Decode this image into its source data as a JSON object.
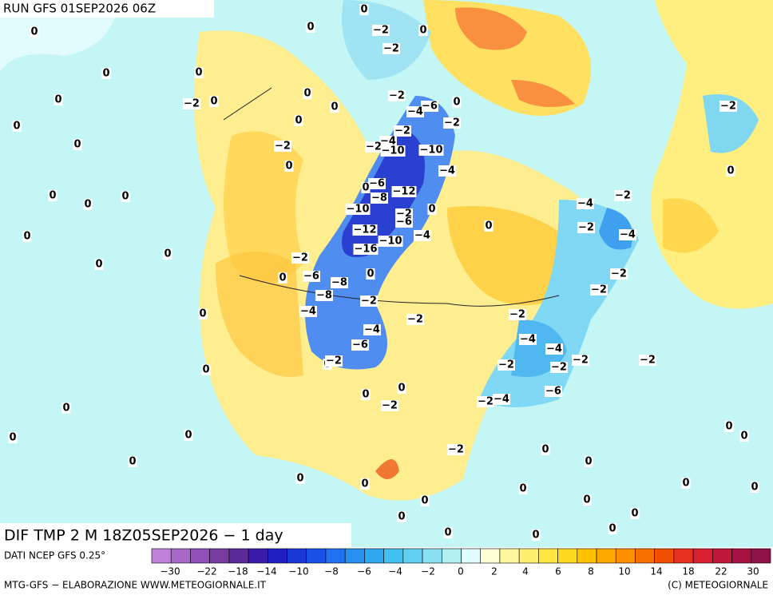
{
  "header": {
    "run": "RUN GFS 01SEP2026 06Z"
  },
  "map": {
    "title": "DIF TMP 2 M 18Z05SEP2026 − 1 day",
    "contour_labels": [
      "0",
      "0",
      "0",
      "−2",
      "0",
      "−2",
      "0",
      "0",
      "0",
      "−2",
      "0",
      "0",
      "−2",
      "0",
      "−6",
      "0",
      "−4",
      "0",
      "0",
      "−2",
      "−2",
      "0",
      "−2",
      "−4",
      "−2",
      "−10",
      "−10",
      "0",
      "−4",
      "−2",
      "0",
      "0",
      "0",
      "0",
      "−6",
      "−12",
      "−8",
      "0",
      "−2",
      "−4",
      "−10",
      "−2",
      "−6",
      "0",
      "−2",
      "0",
      "−4",
      "0",
      "−12",
      "−10",
      "−4",
      "0",
      "0",
      "−2",
      "−16",
      "−6",
      "−8",
      "0",
      "0",
      "−2",
      "−2",
      "−8",
      "−2",
      "−4",
      "0",
      "−2",
      "−2",
      "−4",
      "−4",
      "−4",
      "−6",
      "−2",
      "−2",
      "0",
      "−2",
      "0",
      "−2",
      "−2",
      "−6",
      "0",
      "0",
      "−2",
      "−2",
      "−4",
      "0",
      "0",
      "0",
      "0",
      "0",
      "0",
      "−2",
      "0",
      "0",
      "0",
      "0",
      "0",
      "0",
      "0",
      "0",
      "0",
      "0",
      "0",
      "0",
      "0",
      "0"
    ]
  },
  "legend": {
    "source": "DATI NCEP GFS 0.25°",
    "ticks": [
      -30,
      -22,
      -18,
      -14,
      -10,
      -8,
      -6,
      -4,
      -2,
      0,
      2,
      4,
      6,
      8,
      10,
      14,
      18,
      22,
      30
    ],
    "colors": [
      "#c080d8",
      "#a868c8",
      "#9050b8",
      "#783ca0",
      "#5a2a98",
      "#3a1aa8",
      "#2020c0",
      "#1838d8",
      "#1850e8",
      "#2070f0",
      "#2890f0",
      "#30a8f0",
      "#40c0f0",
      "#60d0f0",
      "#88e0f0",
      "#b0f0f0",
      "#e0fcfc",
      "#ffffd8",
      "#fff8a0",
      "#fff070",
      "#ffe640",
      "#ffd820",
      "#ffc000",
      "#ffa800",
      "#ff9000",
      "#f87000",
      "#f05000",
      "#e83020",
      "#d82030",
      "#c01838",
      "#a81040",
      "#901048"
    ]
  },
  "footer": {
    "credit_left": "MTG-GFS − ELABORAZIONE WWW.METEOGIORNALE.IT",
    "credit_right": "(C) METEOGIORNALE"
  }
}
